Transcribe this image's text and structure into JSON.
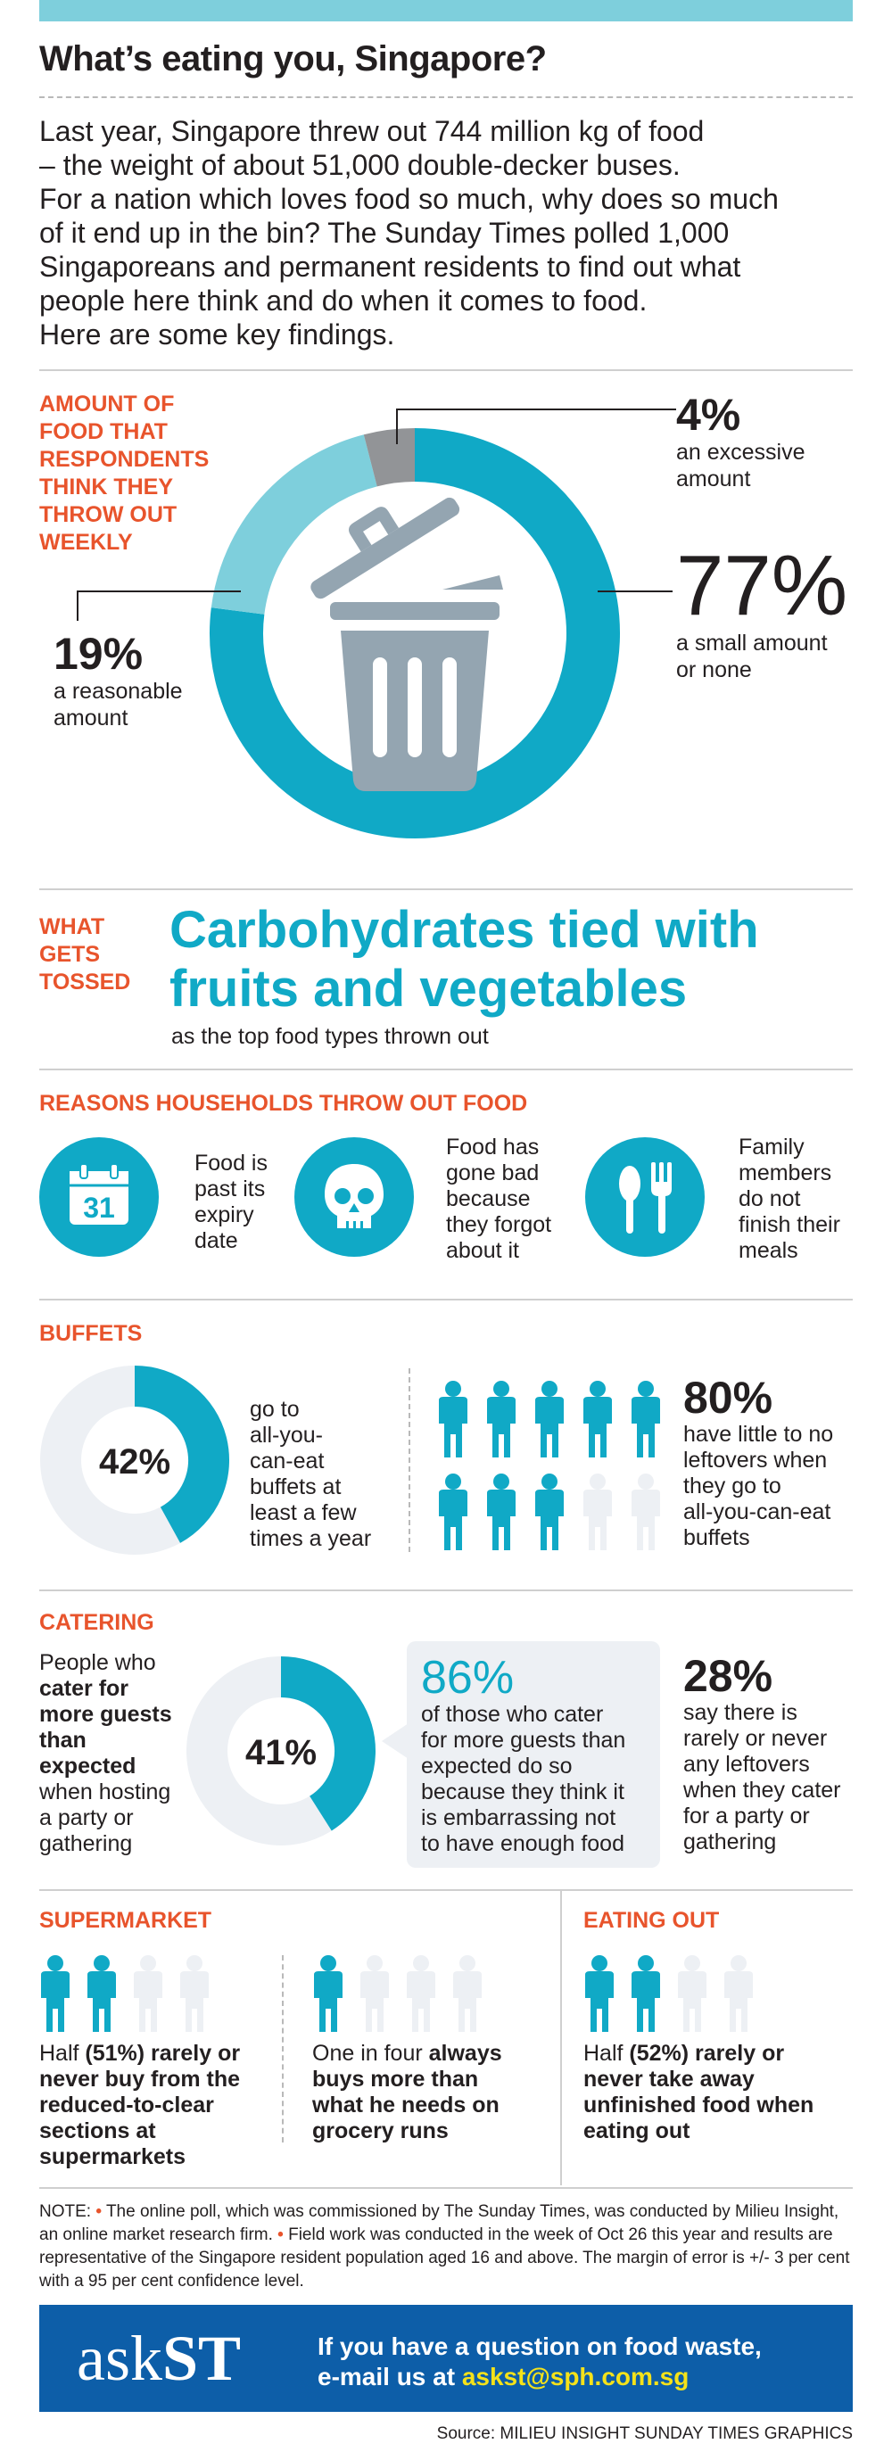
{
  "header": {
    "title": "What’s eating you, Singapore?"
  },
  "intro": {
    "lines": [
      "Last year, Singapore threw out 744 million kg of food",
      "– the weight of about 51,000 double-decker buses.",
      "For a nation which loves food so much, why does so much",
      "of it end up in the bin? The Sunday Times polled 1,000",
      "Singaporeans and permanent residents to find out what",
      "people here think and do when it comes to food.",
      "Here are some key findings."
    ]
  },
  "amount": {
    "label_lines": [
      "AMOUNT OF",
      "FOOD THAT",
      "RESPONDENTS",
      "THINK THEY",
      "THROW OUT",
      "WEEKLY"
    ],
    "segments": [
      {
        "pct": "4%",
        "value": 4,
        "desc_lines": [
          "an excessive",
          "amount"
        ],
        "color": "#929497"
      },
      {
        "pct": "77%",
        "value": 77,
        "desc_lines": [
          "a small amount",
          "or none"
        ],
        "color": "#10a9c6"
      },
      {
        "pct": "19%",
        "value": 19,
        "desc_lines": [
          "a reasonable",
          "amount"
        ],
        "color": "#7ecfdc"
      }
    ],
    "bin_color": "#94a5b1"
  },
  "tossed": {
    "label_lines": [
      "WHAT",
      "GETS",
      "TOSSED"
    ],
    "headline_lines": [
      "Carbohydrates tied with",
      "fruits and vegetables"
    ],
    "sub": "as the top food types thrown out"
  },
  "reasons": {
    "title": "REASONS HOUSEHOLDS THROW OUT FOOD",
    "calendar_day": "31",
    "items": [
      {
        "icon": "calendar-icon",
        "lines": [
          "Food is",
          "past its",
          "expiry",
          "date"
        ]
      },
      {
        "icon": "skull-icon",
        "lines": [
          "Food has",
          "gone bad",
          "because",
          "they forgot",
          "about it"
        ]
      },
      {
        "icon": "spoon-fork-icon",
        "lines": [
          "Family",
          "members",
          "do not",
          "finish their",
          "meals"
        ]
      }
    ]
  },
  "buffets": {
    "title": "BUFFETS",
    "donut_pct": "42%",
    "donut_value": 42,
    "donut_lines": [
      "go to",
      "all-you-",
      "can-eat",
      "buffets at",
      "least a few",
      "times a year"
    ],
    "people_filled": 8,
    "people_total": 10,
    "stat_pct": "80%",
    "stat_lines": [
      "have little to no",
      "leftovers when",
      "they go to",
      "all-you-can-eat",
      "buffets"
    ]
  },
  "catering": {
    "title": "CATERING",
    "left_lines": [
      {
        "text": "People who",
        "bold": false
      },
      {
        "text": "cater for",
        "bold": true
      },
      {
        "text": "more guests",
        "bold": true
      },
      {
        "text": "than",
        "bold": true
      },
      {
        "text": "expected",
        "bold": true
      },
      {
        "text": "when hosting",
        "bold": false
      },
      {
        "text": "a party or",
        "bold": false
      },
      {
        "text": "gathering",
        "bold": false
      }
    ],
    "donut_pct": "41%",
    "donut_value": 41,
    "bubble_pct": "86%",
    "bubble_lines": [
      "of those who cater",
      "for more guests than",
      "expected do so",
      "because they think it",
      "is embarrassing not",
      "to have enough food"
    ],
    "stat_pct": "28%",
    "stat_lines": [
      "say there is",
      "rarely or never",
      "any leftovers",
      "when they cater",
      "for a party or",
      "gathering"
    ]
  },
  "supermarket": {
    "title": "SUPERMARKET",
    "group1": {
      "people_filled": 2,
      "people_total": 4,
      "text_parts": [
        {
          "text": "Half ",
          "bold": false
        },
        {
          "text": "(51%) rarely or never buy from the reduced-to-clear sections at supermarkets",
          "bold": true
        }
      ]
    },
    "group2": {
      "people_filled": 1,
      "people_total": 4,
      "text_parts": [
        {
          "text": "One in four ",
          "bold": false
        },
        {
          "text": "always buys more than what he needs on grocery runs",
          "bold": true
        }
      ]
    }
  },
  "eating_out": {
    "title": "EATING OUT",
    "people_filled": 2,
    "people_total": 4,
    "text_parts": [
      {
        "text": "Half ",
        "bold": false
      },
      {
        "text": "(52%) rarely or never take away unfinished food when eating out",
        "bold": true
      }
    ]
  },
  "note": {
    "label": "NOTE:",
    "bullet1": "The online poll, which was commissioned by The Sunday Times, was conducted by Milieu Insight, an online market research firm.",
    "bullet2": "Field work was conducted in the week of Oct 26 this year and results are representative of the Singapore resident population aged 16 and above. The margin of error is +/- 3 per cent with a 95 per cent confidence level."
  },
  "footer": {
    "logo_ask": "ask",
    "logo_st": "ST",
    "line1": "If you have a question on food waste,",
    "line2_prefix": "e-mail us at ",
    "email": "askst@sph.com.sg"
  },
  "source": "Source: MILIEU INSIGHT   SUNDAY TIMES GRAPHICS",
  "colors": {
    "teal": "#10a9c6",
    "light_teal": "#7ecfdc",
    "orange": "#e8542c",
    "grey_person": "#edf0f4",
    "footer_blue": "#0d5ea8",
    "email_yellow": "#f4e21a"
  }
}
